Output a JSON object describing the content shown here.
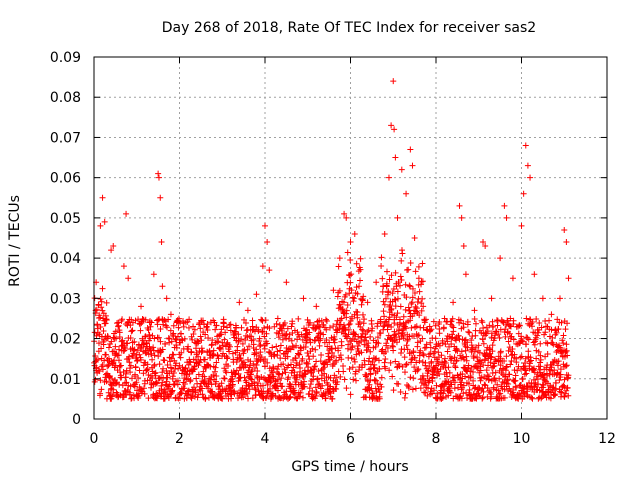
{
  "chart_data": {
    "type": "scatter",
    "title": "Day 268 of 2018, Rate Of TEC Index for receiver sas2",
    "xlabel": "GPS time / hours",
    "ylabel": "ROTI / TECUs",
    "xlim": [
      0,
      12
    ],
    "ylim": [
      0,
      0.09
    ],
    "xticks": [
      0,
      2,
      4,
      6,
      8,
      10,
      12
    ],
    "xtick_labels": [
      "0",
      "2",
      "4",
      "6",
      "8",
      "10",
      "12"
    ],
    "yticks": [
      0,
      0.01,
      0.02,
      0.03,
      0.04,
      0.05,
      0.06,
      0.07,
      0.08,
      0.09
    ],
    "ytick_labels": [
      "0",
      "0.01",
      "0.02",
      "0.03",
      "0.04",
      "0.05",
      "0.06",
      "0.07",
      "0.08",
      "0.09"
    ],
    "grid": true,
    "marker": "+",
    "color": "#ff0000",
    "series": [
      {
        "name": "sas2",
        "points": [
          [
            0.05,
            0.034
          ],
          [
            0.1,
            0.012
          ],
          [
            0.15,
            0.048
          ],
          [
            0.2,
            0.055
          ],
          [
            0.25,
            0.049
          ],
          [
            0.3,
            0.02
          ],
          [
            0.35,
            0.015
          ],
          [
            0.4,
            0.042
          ],
          [
            0.45,
            0.043
          ],
          [
            0.5,
            0.018
          ],
          [
            0.6,
            0.013
          ],
          [
            0.7,
            0.038
          ],
          [
            0.75,
            0.051
          ],
          [
            0.8,
            0.035
          ],
          [
            0.9,
            0.022
          ],
          [
            1.0,
            0.016
          ],
          [
            1.1,
            0.028
          ],
          [
            1.2,
            0.014
          ],
          [
            1.3,
            0.024
          ],
          [
            1.4,
            0.036
          ],
          [
            1.5,
            0.061
          ],
          [
            1.52,
            0.06
          ],
          [
            1.55,
            0.055
          ],
          [
            1.58,
            0.044
          ],
          [
            1.6,
            0.033
          ],
          [
            1.7,
            0.03
          ],
          [
            1.8,
            0.026
          ],
          [
            2.0,
            0.019
          ],
          [
            2.2,
            0.018
          ],
          [
            2.4,
            0.016
          ],
          [
            2.6,
            0.021
          ],
          [
            2.8,
            0.017
          ],
          [
            3.0,
            0.019
          ],
          [
            3.2,
            0.022
          ],
          [
            3.4,
            0.029
          ],
          [
            3.6,
            0.027
          ],
          [
            3.8,
            0.031
          ],
          [
            3.95,
            0.038
          ],
          [
            4.0,
            0.048
          ],
          [
            4.05,
            0.044
          ],
          [
            4.1,
            0.037
          ],
          [
            4.3,
            0.025
          ],
          [
            4.5,
            0.034
          ],
          [
            4.7,
            0.022
          ],
          [
            4.9,
            0.03
          ],
          [
            5.0,
            0.021
          ],
          [
            5.2,
            0.028
          ],
          [
            5.4,
            0.019
          ],
          [
            5.6,
            0.032
          ],
          [
            5.75,
            0.04
          ],
          [
            5.85,
            0.051
          ],
          [
            5.9,
            0.05
          ],
          [
            6.0,
            0.044
          ],
          [
            6.1,
            0.046
          ],
          [
            6.2,
            0.033
          ],
          [
            6.4,
            0.029
          ],
          [
            6.6,
            0.034
          ],
          [
            6.8,
            0.046
          ],
          [
            6.9,
            0.06
          ],
          [
            6.95,
            0.073
          ],
          [
            7.0,
            0.084
          ],
          [
            7.02,
            0.072
          ],
          [
            7.05,
            0.065
          ],
          [
            7.1,
            0.05
          ],
          [
            7.2,
            0.062
          ],
          [
            7.3,
            0.056
          ],
          [
            7.4,
            0.067
          ],
          [
            7.45,
            0.063
          ],
          [
            7.5,
            0.045
          ],
          [
            7.6,
            0.035
          ],
          [
            7.7,
            0.028
          ],
          [
            7.8,
            0.022
          ],
          [
            8.0,
            0.018
          ],
          [
            8.2,
            0.025
          ],
          [
            8.4,
            0.029
          ],
          [
            8.55,
            0.053
          ],
          [
            8.6,
            0.05
          ],
          [
            8.65,
            0.043
          ],
          [
            8.7,
            0.036
          ],
          [
            8.9,
            0.027
          ],
          [
            9.1,
            0.044
          ],
          [
            9.15,
            0.043
          ],
          [
            9.3,
            0.03
          ],
          [
            9.5,
            0.04
          ],
          [
            9.6,
            0.053
          ],
          [
            9.65,
            0.05
          ],
          [
            9.8,
            0.035
          ],
          [
            10.0,
            0.048
          ],
          [
            10.05,
            0.056
          ],
          [
            10.1,
            0.068
          ],
          [
            10.15,
            0.063
          ],
          [
            10.2,
            0.06
          ],
          [
            10.3,
            0.036
          ],
          [
            10.5,
            0.03
          ],
          [
            10.7,
            0.026
          ],
          [
            10.9,
            0.03
          ],
          [
            11.0,
            0.047
          ],
          [
            11.05,
            0.044
          ],
          [
            11.1,
            0.035
          ]
        ]
      }
    ],
    "background_noise": {
      "description": "dense scatter band of ROTI values roughly 0.005-0.025 TECU/min across 0 to 11.1 hours",
      "x_range": [
        0,
        11.1
      ],
      "y_low": 0.005,
      "y_high": 0.025
    }
  }
}
